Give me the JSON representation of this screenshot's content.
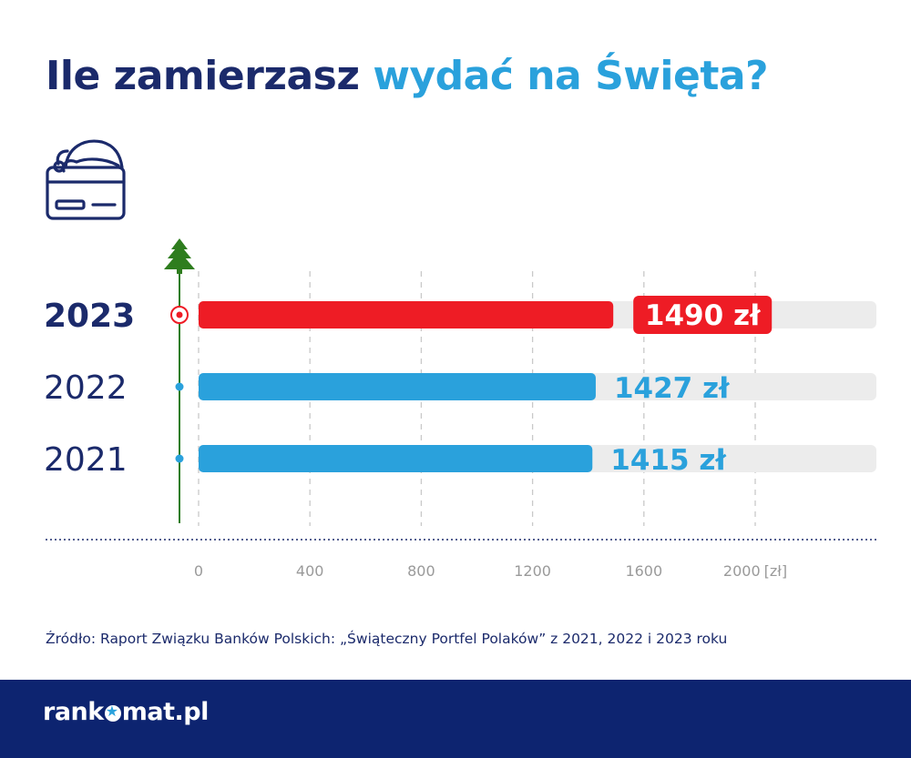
{
  "title": {
    "part1": "Ile zamierzasz ",
    "part2": "wydać na Święta?"
  },
  "icons": {
    "header": "credit-card-santa-hat-icon",
    "timeline_top": "christmas-tree-icon"
  },
  "colors": {
    "navy": "#1b2a6b",
    "accent": "#2aa1dc",
    "highlight": "#ee1c25",
    "track": "#ececec",
    "tree": "#2e7d1e",
    "footer": "#0d2470"
  },
  "source": "Źródło:  Raport Związku Banków Polskich: „Świąteczny Portfel Polaków” z 2021, 2022 i 2023 roku",
  "brand": {
    "before": "rank",
    "after": "mat.pl"
  },
  "chart_data": {
    "type": "bar",
    "orientation": "horizontal",
    "categories": [
      "2023",
      "2022",
      "2021"
    ],
    "values": [
      1490,
      1427,
      1415
    ],
    "value_labels": [
      "1490 zł",
      "1427 zł",
      "1415 zł"
    ],
    "highlight_index": 0,
    "xlim": [
      0,
      2400
    ],
    "xticks": [
      0,
      400,
      800,
      1200,
      1600,
      2000
    ],
    "xtick_labels": [
      "0",
      "400",
      "800",
      "1200",
      "1600",
      "2000"
    ],
    "x_unit": "[zł]",
    "grid": true
  }
}
